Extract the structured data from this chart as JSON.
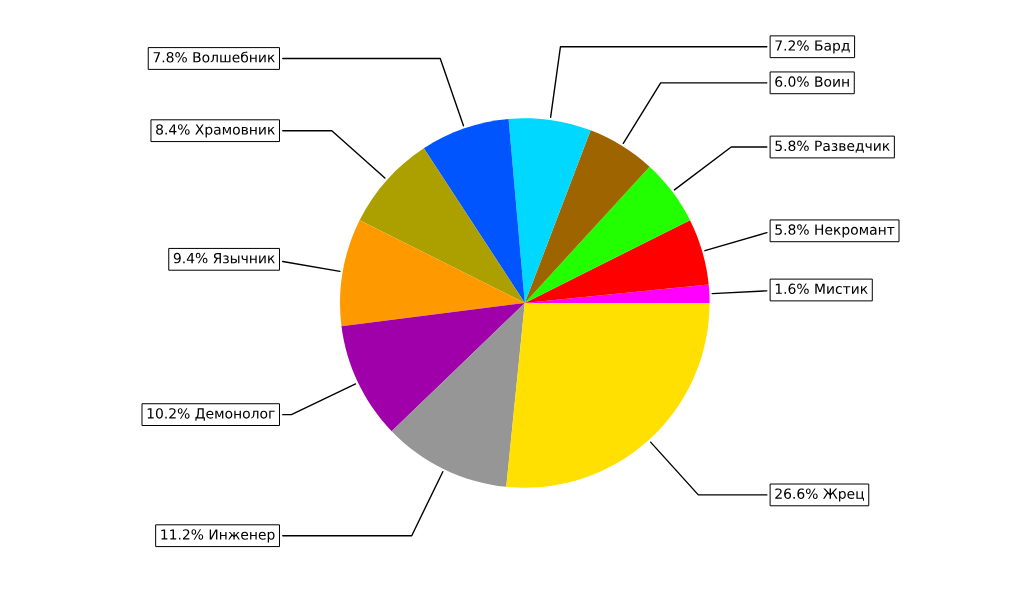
{
  "chart_data": {
    "type": "pie",
    "categories": [
      "Мистик",
      "Некромант",
      "Разведчик",
      "Воин",
      "Бард",
      "Волшебник",
      "Храмовник",
      "Язычник",
      "Демонолог",
      "Инженер",
      "Жрец"
    ],
    "values": [
      1.6,
      5.8,
      5.8,
      6.0,
      7.2,
      7.8,
      8.4,
      9.4,
      10.2,
      11.2,
      26.6
    ],
    "value_labels": [
      "1.6%",
      "5.8%",
      "5.8%",
      "6.0%",
      "7.2%",
      "7.8%",
      "8.4%",
      "9.4%",
      "10.2%",
      "11.2%",
      "26.6%"
    ],
    "colors": [
      "#ff00ff",
      "#ff0000",
      "#22ff00",
      "#9e6400",
      "#00d8ff",
      "#0055ff",
      "#aca000",
      "#ff9900",
      "#a000aa",
      "#969696",
      "#ffe000"
    ]
  }
}
